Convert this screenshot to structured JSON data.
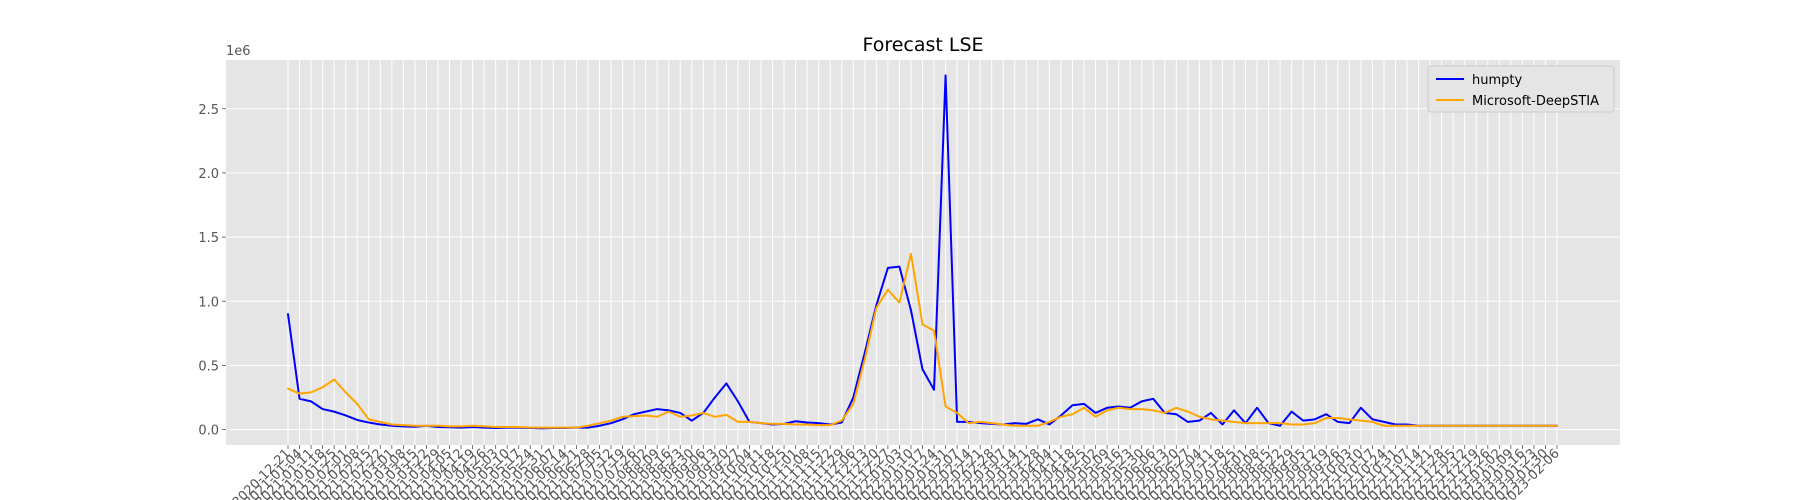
{
  "chart_data": {
    "type": "line",
    "title": "Forecast LSE",
    "xlabel": "",
    "ylabel": "",
    "y_offset_label": "1e6",
    "ylim": [
      -0.12,
      2.88
    ],
    "yticks": [
      0.0,
      0.5,
      1.0,
      1.5,
      2.0,
      2.5
    ],
    "ytick_labels": [
      "0.0",
      "0.5",
      "1.0",
      "1.5",
      "2.0",
      "2.5"
    ],
    "grid": true,
    "legend_position": "top-right",
    "x": [
      "2020-12-21",
      "2021-01-04",
      "2021-01-11",
      "2021-01-18",
      "2021-01-25",
      "2021-02-01",
      "2021-02-08",
      "2021-02-15",
      "2021-02-22",
      "2021-03-01",
      "2021-03-08",
      "2021-03-15",
      "2021-03-22",
      "2021-03-29",
      "2021-04-05",
      "2021-04-12",
      "2021-04-19",
      "2021-04-26",
      "2021-05-03",
      "2021-05-10",
      "2021-05-17",
      "2021-05-24",
      "2021-05-31",
      "2021-06-07",
      "2021-06-14",
      "2021-06-21",
      "2021-06-28",
      "2021-07-05",
      "2021-07-12",
      "2021-07-19",
      "2021-07-26",
      "2021-08-02",
      "2021-08-09",
      "2021-08-16",
      "2021-08-23",
      "2021-08-30",
      "2021-09-06",
      "2021-09-13",
      "2021-09-20",
      "2021-09-27",
      "2021-10-04",
      "2021-10-11",
      "2021-10-18",
      "2021-10-25",
      "2021-11-01",
      "2021-11-08",
      "2021-11-15",
      "2021-11-22",
      "2021-11-29",
      "2021-12-06",
      "2021-12-13",
      "2021-12-20",
      "2021-12-27",
      "2022-01-03",
      "2022-01-10",
      "2022-01-17",
      "2022-01-24",
      "2022-01-31",
      "2022-02-07",
      "2022-02-14",
      "2022-02-21",
      "2022-02-28",
      "2022-03-07",
      "2022-03-14",
      "2022-03-21",
      "2022-03-28",
      "2022-04-04",
      "2022-04-11",
      "2022-04-18",
      "2022-04-25",
      "2022-05-02",
      "2022-05-09",
      "2022-05-16",
      "2022-05-23",
      "2022-05-30",
      "2022-06-06",
      "2022-06-13",
      "2022-06-20",
      "2022-06-27",
      "2022-07-04",
      "2022-07-11",
      "2022-07-18",
      "2022-07-25",
      "2022-08-01",
      "2022-08-08",
      "2022-08-15",
      "2022-08-22",
      "2022-08-29",
      "2022-09-05",
      "2022-09-12",
      "2022-09-19",
      "2022-09-26",
      "2022-10-03",
      "2022-10-10",
      "2022-10-17",
      "2022-10-24",
      "2022-10-31",
      "2022-11-07",
      "2022-11-14",
      "2022-11-21",
      "2022-11-28",
      "2022-12-05",
      "2022-12-12",
      "2022-12-19",
      "2022-12-26",
      "2023-01-02",
      "2023-01-09",
      "2023-01-16",
      "2023-01-23",
      "2023-01-30",
      "2023-02-06"
    ],
    "series": [
      {
        "name": "humpty",
        "color": "#0000ff",
        "values": [
          0.9,
          0.24,
          0.22,
          0.16,
          0.14,
          0.11,
          0.075,
          0.055,
          0.04,
          0.03,
          0.025,
          0.022,
          0.03,
          0.02,
          0.018,
          0.015,
          0.02,
          0.015,
          0.012,
          0.015,
          0.015,
          0.012,
          0.01,
          0.012,
          0.012,
          0.015,
          0.015,
          0.03,
          0.05,
          0.08,
          0.12,
          0.14,
          0.16,
          0.15,
          0.13,
          0.07,
          0.13,
          0.25,
          0.36,
          0.22,
          0.06,
          0.05,
          0.04,
          0.045,
          0.065,
          0.055,
          0.05,
          0.04,
          0.055,
          0.25,
          0.6,
          0.97,
          1.26,
          1.27,
          0.93,
          0.47,
          0.31,
          2.76,
          0.06,
          0.06,
          0.05,
          0.045,
          0.04,
          0.05,
          0.045,
          0.08,
          0.04,
          0.11,
          0.19,
          0.2,
          0.13,
          0.17,
          0.18,
          0.17,
          0.22,
          0.24,
          0.13,
          0.12,
          0.06,
          0.07,
          0.13,
          0.04,
          0.15,
          0.05,
          0.17,
          0.05,
          0.03,
          0.14,
          0.07,
          0.08,
          0.12,
          0.06,
          0.05,
          0.17,
          0.08,
          0.06,
          0.04,
          0.04,
          0.03,
          0.03,
          0.03,
          0.03,
          0.03,
          0.03,
          0.03,
          0.03,
          0.03,
          0.03,
          0.03,
          0.03,
          0.03
        ]
      },
      {
        "name": "Microsoft-DeepSTIA",
        "color": "#ffa500",
        "values": [
          0.32,
          0.28,
          0.29,
          0.33,
          0.39,
          0.29,
          0.2,
          0.08,
          0.06,
          0.04,
          0.035,
          0.03,
          0.03,
          0.03,
          0.025,
          0.025,
          0.03,
          0.025,
          0.02,
          0.02,
          0.02,
          0.015,
          0.015,
          0.015,
          0.015,
          0.015,
          0.03,
          0.05,
          0.07,
          0.1,
          0.105,
          0.11,
          0.1,
          0.14,
          0.1,
          0.11,
          0.13,
          0.1,
          0.115,
          0.06,
          0.06,
          0.05,
          0.045,
          0.045,
          0.04,
          0.04,
          0.035,
          0.035,
          0.07,
          0.2,
          0.55,
          0.95,
          1.09,
          0.99,
          1.37,
          0.82,
          0.77,
          0.18,
          0.13,
          0.05,
          0.06,
          0.05,
          0.04,
          0.03,
          0.03,
          0.03,
          0.06,
          0.1,
          0.12,
          0.17,
          0.1,
          0.15,
          0.17,
          0.16,
          0.16,
          0.15,
          0.13,
          0.17,
          0.14,
          0.1,
          0.08,
          0.07,
          0.06,
          0.05,
          0.05,
          0.05,
          0.05,
          0.04,
          0.04,
          0.05,
          0.09,
          0.09,
          0.08,
          0.07,
          0.06,
          0.03,
          0.03,
          0.03,
          0.03,
          0.03,
          0.03,
          0.03,
          0.03,
          0.03,
          0.03,
          0.03,
          0.03,
          0.03,
          0.03,
          0.03,
          0.03
        ]
      }
    ]
  }
}
